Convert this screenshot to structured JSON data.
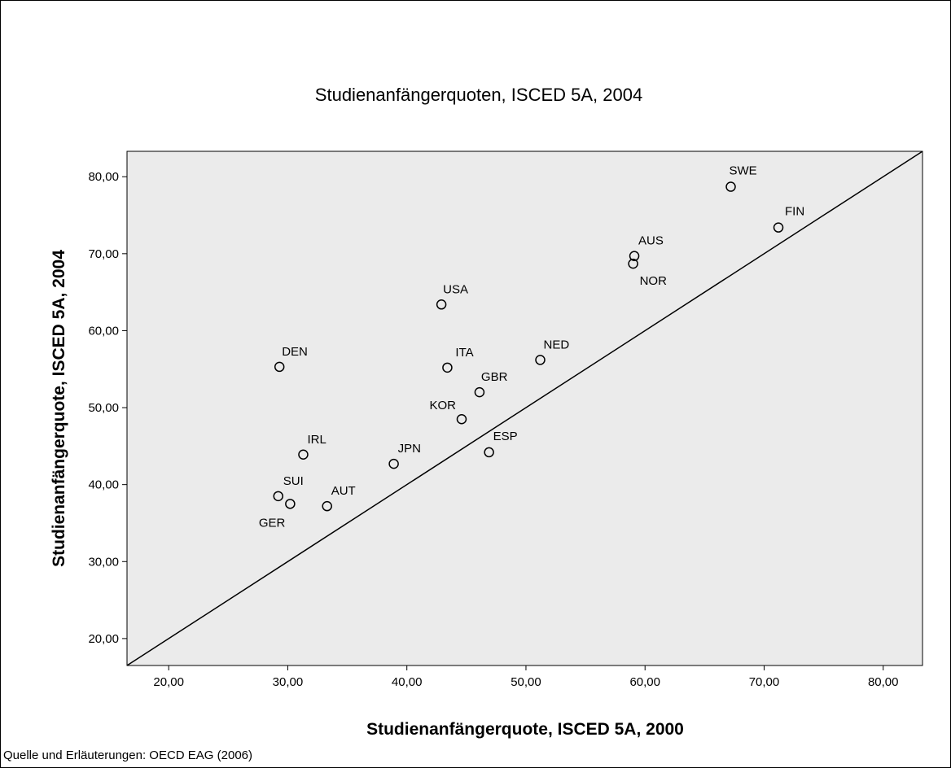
{
  "chart_data": {
    "type": "scatter",
    "title": "Studienanfängerquoten, ISCED 5A, 2004",
    "xlabel": "Studienanfängerquote, ISCED 5A, 2000",
    "ylabel": "Studienanfängerquote, ISCED 5A, 2004",
    "xlim": [
      16.5,
      83.3
    ],
    "ylim": [
      16.5,
      83.3
    ],
    "x_ticks": [
      20,
      30,
      40,
      50,
      60,
      70,
      80
    ],
    "y_ticks": [
      20,
      30,
      40,
      50,
      60,
      70,
      80
    ],
    "x_tick_labels": [
      "20,00",
      "30,00",
      "40,00",
      "50,00",
      "60,00",
      "70,00",
      "80,00"
    ],
    "y_tick_labels": [
      "20,00",
      "30,00",
      "40,00",
      "50,00",
      "60,00",
      "70,00",
      "80,00"
    ],
    "grid": false,
    "reference_line": "y = x",
    "points": [
      {
        "label": "SWE",
        "x": 67.2,
        "y": 78.7
      },
      {
        "label": "FIN",
        "x": 71.2,
        "y": 73.4
      },
      {
        "label": "AUS",
        "x": 59.1,
        "y": 69.7
      },
      {
        "label": "NOR",
        "x": 59.0,
        "y": 68.7
      },
      {
        "label": "USA",
        "x": 42.9,
        "y": 63.4
      },
      {
        "label": "DEN",
        "x": 29.3,
        "y": 55.3
      },
      {
        "label": "ITA",
        "x": 43.4,
        "y": 55.2
      },
      {
        "label": "NED",
        "x": 51.2,
        "y": 56.2
      },
      {
        "label": "GBR",
        "x": 46.1,
        "y": 52.0
      },
      {
        "label": "KOR",
        "x": 44.6,
        "y": 48.5
      },
      {
        "label": "IRL",
        "x": 31.3,
        "y": 43.9
      },
      {
        "label": "JPN",
        "x": 38.9,
        "y": 42.7
      },
      {
        "label": "ESP",
        "x": 46.9,
        "y": 44.2
      },
      {
        "label": "SUI",
        "x": 29.2,
        "y": 38.5
      },
      {
        "label": "GER",
        "x": 30.2,
        "y": 37.5
      },
      {
        "label": "AUT",
        "x": 33.3,
        "y": 37.2
      }
    ],
    "colors": {
      "plot_background": "#ebebeb",
      "marker": "#000000",
      "line": "#000000"
    }
  },
  "footer": {
    "source": "Quelle und Erläuterungen: OECD EAG (2006)"
  }
}
